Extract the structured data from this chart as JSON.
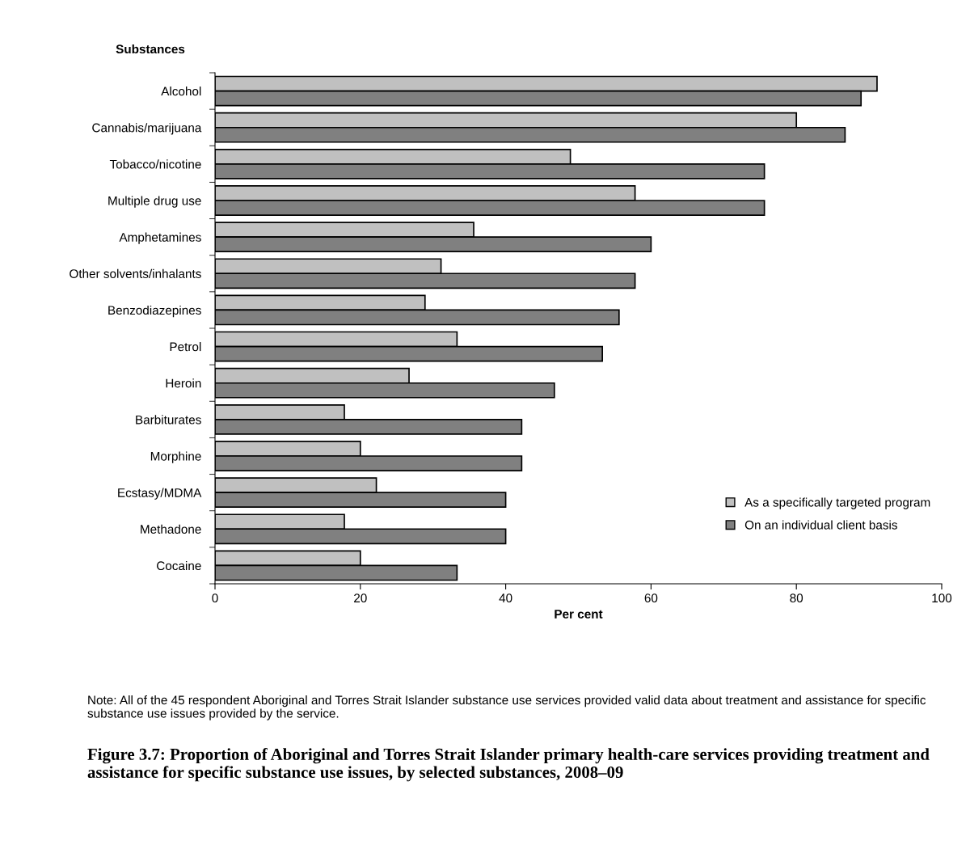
{
  "chart_data": {
    "type": "bar",
    "orientation": "horizontal",
    "title": "Figure 3.7: Proportion of Aboriginal and Torres Strait Islander primary health-care services providing treatment and assistance for specific substance use issues, by selected substances, 2008–09",
    "xlabel": "Per cent",
    "ylabel": "Substances",
    "categories": [
      "Alcohol",
      "Cannabis/marijuana",
      "Tobacco/nicotine",
      "Multiple drug use",
      "Amphetamines",
      "Other solvents/inhalants",
      "Benzodiazepines",
      "Petrol",
      "Heroin",
      "Barbiturates",
      "Morphine",
      "Ecstasy/MDMA",
      "Methadone",
      "Cocaine"
    ],
    "series": [
      {
        "name": "As a specifically targeted program",
        "color": "#c0c0c0",
        "values": [
          91.1,
          80.0,
          48.9,
          57.8,
          35.6,
          31.1,
          28.9,
          33.3,
          26.7,
          17.8,
          20.0,
          22.2,
          17.8,
          20.0
        ]
      },
      {
        "name": "On an individual client basis",
        "color": "#808080",
        "values": [
          88.9,
          86.7,
          75.6,
          75.6,
          60.0,
          57.8,
          55.6,
          53.3,
          46.7,
          42.2,
          42.2,
          40.0,
          40.0,
          33.3
        ]
      }
    ],
    "xlim": [
      0,
      100
    ],
    "xticks": [
      0,
      20,
      40,
      60,
      80,
      100
    ],
    "legend": "bottom right",
    "grid": false,
    "annotations": [
      "Note: All of the 45 respondent Aboriginal and Torres Strait Islander substance use services provided valid data about treatment and assistance for specific substance use issues provided by the service."
    ]
  }
}
